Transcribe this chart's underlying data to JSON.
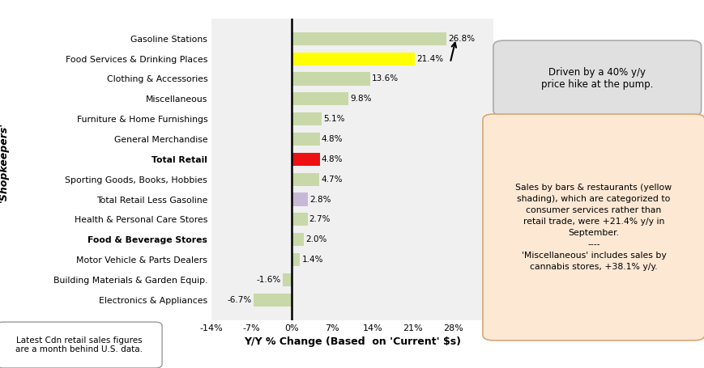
{
  "categories": [
    "Gasoline Stations",
    "Food Services & Drinking Places",
    "Clothing & Accessories",
    "Miscellaneous",
    "Furniture & Home Furnishings",
    "General Merchandise",
    "Total Retail",
    "Sporting Goods, Books, Hobbies",
    "Total Retail Less Gasoline",
    "Health & Personal Care Stores",
    "Food & Beverage Stores",
    "Motor Vehicle & Parts Dealers",
    "Building Materials & Garden Equip.",
    "Electronics & Appliances"
  ],
  "values": [
    26.8,
    21.4,
    13.6,
    9.8,
    5.1,
    4.8,
    4.8,
    4.7,
    2.8,
    2.7,
    2.0,
    1.4,
    -1.6,
    -6.7
  ],
  "bar_colors": [
    "#c8d8a8",
    "#ffff00",
    "#c8d8a8",
    "#c8d8a8",
    "#c8d8a8",
    "#c8d8a8",
    "#ee1111",
    "#c8d8a8",
    "#c8b8d8",
    "#c8d8a8",
    "#c8d8a8",
    "#c8d8a8",
    "#c8d8a8",
    "#c8d8a8"
  ],
  "xlabel": "Y/Y % Change (Based  on 'Current' $s)",
  "ylabel": "'Shopkeepers'",
  "xlim": [
    -14,
    35
  ],
  "xticks": [
    -14,
    -7,
    0,
    7,
    14,
    21,
    28
  ],
  "xtick_labels": [
    "-14%",
    "-7%",
    "0%",
    "7%",
    "14%",
    "21%",
    "28%"
  ],
  "annotation_box1_text": "Driven by a 40% y/y\nprice hike at the pump.",
  "annotation_box2_text": "Sales by bars & restaurants (yellow\nshading), which are categorized to\nconsumer services rather than\nretail trade, were +21.4% y/y in\nSeptember.\n----\n'Miscellaneous' includes sales by\ncannabis stores, +38.1% y/y.",
  "bottom_box_text": "Latest Cdn retail sales figures\nare a month behind U.S. data.",
  "bold_labels": [
    "Food & Beverage Stores",
    "Total Retail"
  ]
}
